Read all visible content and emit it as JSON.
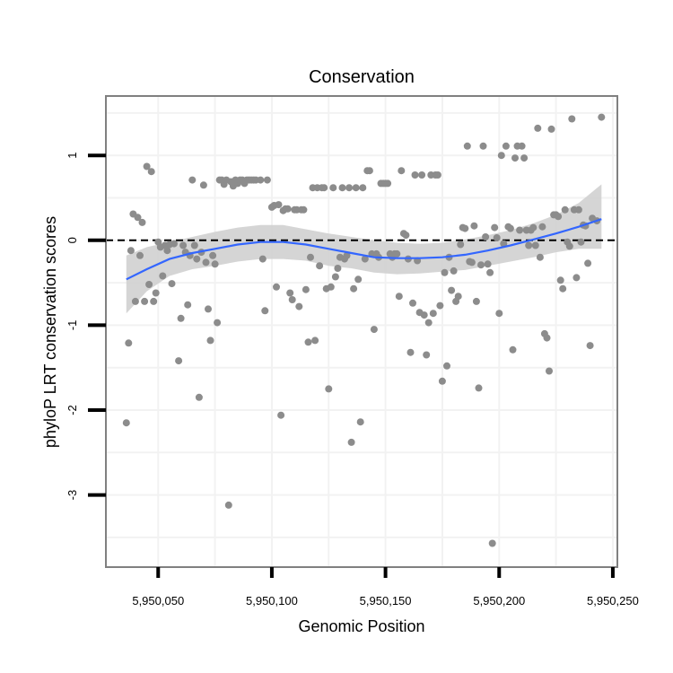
{
  "chart_data": {
    "type": "scatter",
    "title": "Conservation",
    "xlabel": "Genomic Position",
    "ylabel": "phyloP LRT conservation scores",
    "xlim": [
      5950027,
      5950252
    ],
    "ylim": [
      -3.85,
      1.7
    ],
    "x_ticks": [
      5950050,
      5950100,
      5950150,
      5950200,
      5950250
    ],
    "x_tick_labels": [
      "5,950,050",
      "5,950,100",
      "5,950,150",
      "5,950,200",
      "5,950,250"
    ],
    "y_ticks": [
      -3,
      -2,
      -1,
      0,
      1
    ],
    "y_tick_labels": [
      "-3",
      "-2",
      "-1",
      "0",
      "1"
    ],
    "grid": true,
    "reference_line": {
      "y": 0,
      "style": "dashed",
      "color": "#000000"
    },
    "colors": {
      "points": "#8c8c8c",
      "smooth": "#3366ff",
      "ribbon": "#d0d0d0",
      "grid": "#f2f2f2",
      "frame": "#808080"
    },
    "points": [
      [
        5950036,
        -2.15
      ],
      [
        5950037,
        -1.21
      ],
      [
        5950038,
        -0.12
      ],
      [
        5950039,
        0.31
      ],
      [
        5950040,
        -0.72
      ],
      [
        5950041,
        0.27
      ],
      [
        5950042,
        -0.18
      ],
      [
        5950043,
        0.21
      ],
      [
        5950044,
        -0.72
      ],
      [
        5950045,
        0.87
      ],
      [
        5950046,
        -0.52
      ],
      [
        5950047,
        0.81
      ],
      [
        5950048,
        -0.72
      ],
      [
        5950049,
        -0.62
      ],
      [
        5950050,
        -0.02
      ],
      [
        5950051,
        -0.08
      ],
      [
        5950052,
        -0.42
      ],
      [
        5950053,
        -0.06
      ],
      [
        5950054,
        -0.12
      ],
      [
        5950055,
        -0.05
      ],
      [
        5950056,
        -0.51
      ],
      [
        5950057,
        -0.04
      ],
      [
        5950059,
        -1.42
      ],
      [
        5950060,
        -0.92
      ],
      [
        5950061,
        -0.06
      ],
      [
        5950062,
        -0.14
      ],
      [
        5950063,
        -0.76
      ],
      [
        5950064,
        -0.18
      ],
      [
        5950065,
        0.71
      ],
      [
        5950066,
        -0.06
      ],
      [
        5950067,
        -0.22
      ],
      [
        5950068,
        -1.85
      ],
      [
        5950069,
        -0.14
      ],
      [
        5950070,
        0.65
      ],
      [
        5950071,
        -0.26
      ],
      [
        5950072,
        -0.81
      ],
      [
        5950073,
        -1.18
      ],
      [
        5950074,
        -0.18
      ],
      [
        5950075,
        -0.28
      ],
      [
        5950076,
        -0.97
      ],
      [
        5950077,
        0.71
      ],
      [
        5950078,
        0.71
      ],
      [
        5950079,
        0.66
      ],
      [
        5950080,
        0.71
      ],
      [
        5950081,
        -3.12
      ],
      [
        5950082,
        0.69
      ],
      [
        5950083,
        0.64
      ],
      [
        5950084,
        0.71
      ],
      [
        5950085,
        0.67
      ],
      [
        5950086,
        0.71
      ],
      [
        5950087,
        0.71
      ],
      [
        5950088,
        0.67
      ],
      [
        5950089,
        0.71
      ],
      [
        5950090,
        0.71
      ],
      [
        5950091,
        0.71
      ],
      [
        5950092,
        0.71
      ],
      [
        5950093,
        0.71
      ],
      [
        5950095,
        0.71
      ],
      [
        5950096,
        -0.22
      ],
      [
        5950097,
        -0.83
      ],
      [
        5950098,
        0.71
      ],
      [
        5950100,
        0.39
      ],
      [
        5950101,
        0.41
      ],
      [
        5950102,
        -0.55
      ],
      [
        5950103,
        0.42
      ],
      [
        5950104,
        -2.06
      ],
      [
        5950105,
        0.35
      ],
      [
        5950106,
        0.37
      ],
      [
        5950107,
        0.37
      ],
      [
        5950108,
        -0.62
      ],
      [
        5950109,
        -0.7
      ],
      [
        5950110,
        0.36
      ],
      [
        5950111,
        0.36
      ],
      [
        5950112,
        -0.78
      ],
      [
        5950113,
        0.36
      ],
      [
        5950114,
        0.36
      ],
      [
        5950115,
        -0.58
      ],
      [
        5950116,
        -1.2
      ],
      [
        5950117,
        -0.2
      ],
      [
        5950118,
        0.62
      ],
      [
        5950119,
        -1.18
      ],
      [
        5950120,
        0.62
      ],
      [
        5950121,
        -0.3
      ],
      [
        5950122,
        0.62
      ],
      [
        5950123,
        0.62
      ],
      [
        5950124,
        -0.57
      ],
      [
        5950125,
        -1.75
      ],
      [
        5950126,
        -0.55
      ],
      [
        5950127,
        0.62
      ],
      [
        5950128,
        -0.43
      ],
      [
        5950129,
        -0.33
      ],
      [
        5950130,
        -0.2
      ],
      [
        5950131,
        0.62
      ],
      [
        5950132,
        -0.22
      ],
      [
        5950133,
        -0.18
      ],
      [
        5950134,
        0.62
      ],
      [
        5950135,
        -2.38
      ],
      [
        5950136,
        -0.57
      ],
      [
        5950137,
        0.62
      ],
      [
        5950138,
        -0.46
      ],
      [
        5950139,
        -2.14
      ],
      [
        5950140,
        0.62
      ],
      [
        5950141,
        -0.22
      ],
      [
        5950142,
        0.82
      ],
      [
        5950143,
        0.82
      ],
      [
        5950144,
        -0.16
      ],
      [
        5950145,
        -1.05
      ],
      [
        5950146,
        -0.16
      ],
      [
        5950147,
        -0.2
      ],
      [
        5950148,
        0.67
      ],
      [
        5950149,
        0.67
      ],
      [
        5950150,
        0.67
      ],
      [
        5950151,
        0.67
      ],
      [
        5950152,
        -0.16
      ],
      [
        5950153,
        -0.2
      ],
      [
        5950154,
        -0.16
      ],
      [
        5950155,
        -0.16
      ],
      [
        5950156,
        -0.66
      ],
      [
        5950157,
        0.82
      ],
      [
        5950158,
        0.08
      ],
      [
        5950159,
        0.06
      ],
      [
        5950160,
        -0.22
      ],
      [
        5950161,
        -1.32
      ],
      [
        5950162,
        -0.74
      ],
      [
        5950163,
        0.77
      ],
      [
        5950164,
        -0.24
      ],
      [
        5950165,
        -0.85
      ],
      [
        5950166,
        0.77
      ],
      [
        5950167,
        -0.88
      ],
      [
        5950168,
        -1.35
      ],
      [
        5950169,
        -0.97
      ],
      [
        5950170,
        0.77
      ],
      [
        5950171,
        -0.86
      ],
      [
        5950172,
        0.77
      ],
      [
        5950173,
        0.77
      ],
      [
        5950174,
        -0.77
      ],
      [
        5950175,
        -1.66
      ],
      [
        5950176,
        -0.38
      ],
      [
        5950177,
        -1.48
      ],
      [
        5950178,
        -0.2
      ],
      [
        5950179,
        -0.59
      ],
      [
        5950180,
        -0.36
      ],
      [
        5950181,
        -0.72
      ],
      [
        5950182,
        -0.66
      ],
      [
        5950183,
        -0.05
      ],
      [
        5950184,
        0.15
      ],
      [
        5950185,
        0.14
      ],
      [
        5950186,
        1.11
      ],
      [
        5950187,
        -0.25
      ],
      [
        5950188,
        -0.26
      ],
      [
        5950189,
        0.17
      ],
      [
        5950190,
        -0.72
      ],
      [
        5950191,
        -1.74
      ],
      [
        5950192,
        -0.29
      ],
      [
        5950193,
        1.11
      ],
      [
        5950194,
        0.04
      ],
      [
        5950195,
        -0.28
      ],
      [
        5950196,
        -0.38
      ],
      [
        5950197,
        -3.57
      ],
      [
        5950198,
        0.15
      ],
      [
        5950199,
        0.03
      ],
      [
        5950200,
        -0.86
      ],
      [
        5950201,
        1.0
      ],
      [
        5950202,
        -0.04
      ],
      [
        5950203,
        1.11
      ],
      [
        5950204,
        0.16
      ],
      [
        5950205,
        0.14
      ],
      [
        5950206,
        -1.29
      ],
      [
        5950207,
        0.97
      ],
      [
        5950208,
        1.11
      ],
      [
        5950209,
        0.12
      ],
      [
        5950210,
        1.11
      ],
      [
        5950211,
        0.97
      ],
      [
        5950212,
        0.12
      ],
      [
        5950213,
        -0.06
      ],
      [
        5950214,
        0.12
      ],
      [
        5950215,
        0.15
      ],
      [
        5950216,
        -0.06
      ],
      [
        5950217,
        1.32
      ],
      [
        5950218,
        -0.2
      ],
      [
        5950219,
        0.16
      ],
      [
        5950220,
        -1.1
      ],
      [
        5950221,
        -1.15
      ],
      [
        5950222,
        -1.54
      ],
      [
        5950223,
        1.31
      ],
      [
        5950224,
        0.3
      ],
      [
        5950225,
        0.3
      ],
      [
        5950226,
        0.28
      ],
      [
        5950227,
        -0.47
      ],
      [
        5950228,
        -0.57
      ],
      [
        5950229,
        0.36
      ],
      [
        5950230,
        -0.02
      ],
      [
        5950231,
        -0.07
      ],
      [
        5950232,
        1.43
      ],
      [
        5950233,
        0.36
      ],
      [
        5950234,
        -0.44
      ],
      [
        5950235,
        0.36
      ],
      [
        5950236,
        -0.02
      ],
      [
        5950237,
        0.18
      ],
      [
        5950238,
        0.17
      ],
      [
        5950239,
        -0.27
      ],
      [
        5950240,
        -1.24
      ],
      [
        5950241,
        0.26
      ],
      [
        5950243,
        0.23
      ],
      [
        5950245,
        1.45
      ]
    ],
    "smooth": {
      "x": [
        5950036,
        5950045,
        5950055,
        5950065,
        5950075,
        5950085,
        5950095,
        5950105,
        5950115,
        5950125,
        5950135,
        5950145,
        5950155,
        5950165,
        5950175,
        5950185,
        5950195,
        5950205,
        5950215,
        5950225,
        5950235,
        5950245
      ],
      "y": [
        -0.46,
        -0.34,
        -0.22,
        -0.15,
        -0.1,
        -0.05,
        -0.02,
        -0.02,
        -0.05,
        -0.1,
        -0.15,
        -0.2,
        -0.21,
        -0.21,
        -0.2,
        -0.17,
        -0.12,
        -0.06,
        0.01,
        0.08,
        0.16,
        0.25
      ],
      "upper": [
        -0.18,
        -0.08,
        -0.02,
        0.04,
        0.1,
        0.15,
        0.18,
        0.18,
        0.13,
        0.08,
        0.04,
        0.0,
        -0.03,
        -0.04,
        -0.03,
        0.01,
        0.06,
        0.12,
        0.2,
        0.3,
        0.44,
        0.66
      ],
      "lower": [
        -0.86,
        -0.6,
        -0.42,
        -0.34,
        -0.3,
        -0.25,
        -0.22,
        -0.22,
        -0.24,
        -0.3,
        -0.33,
        -0.38,
        -0.4,
        -0.39,
        -0.37,
        -0.35,
        -0.3,
        -0.25,
        -0.2,
        -0.14,
        -0.1,
        -0.1
      ]
    }
  }
}
